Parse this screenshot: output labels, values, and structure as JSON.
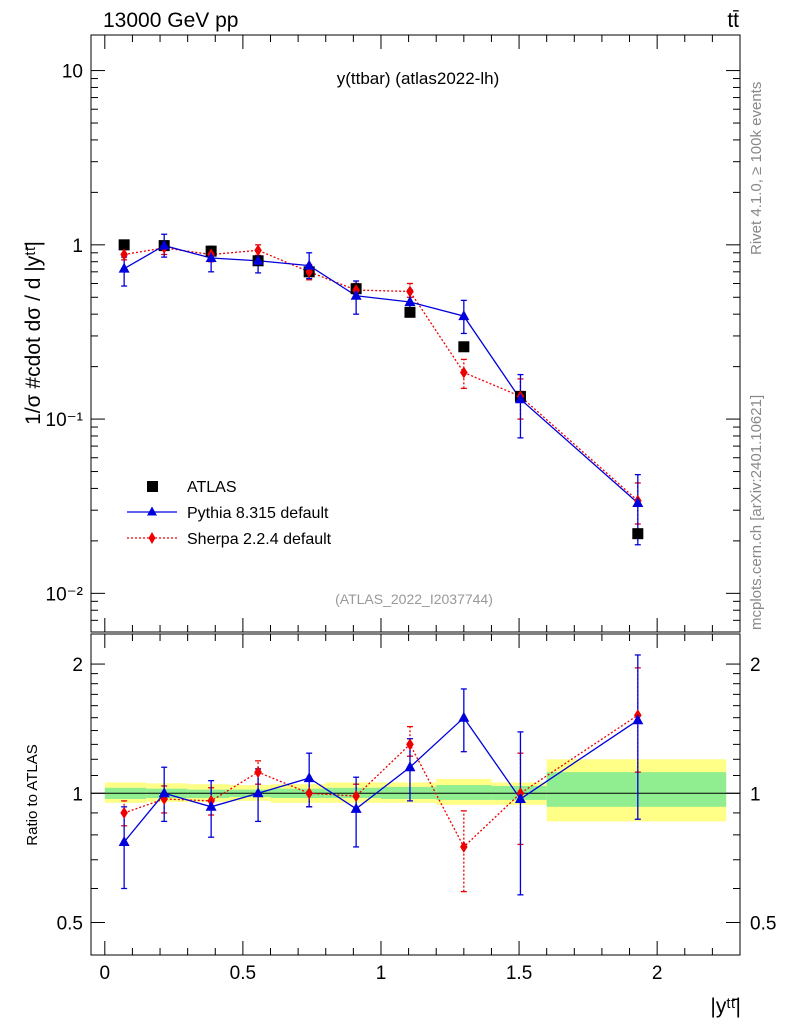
{
  "header": {
    "left": "13000 GeV pp",
    "right": "tt̄"
  },
  "side_labels": {
    "rivet": "Rivet 4.1.0, ≥ 100k events",
    "mcplots": "mcplots.cern.ch [arXiv:2401.10621]"
  },
  "colors": {
    "data": "#000000",
    "pythia": "#0000dd",
    "sherpa": "#ee0000",
    "band_inner": "#90ee90",
    "band_outer": "#ffff88"
  },
  "chart_data": [
    {
      "panel": "main",
      "type": "scatter",
      "title": "y(ttbar) (atlas2022-lh)",
      "watermark": "(ATLAS_2022_I2037744)",
      "ylabel": "1/σ #cdot dσ / d |yᵗᵗ̄|",
      "yscale": "log",
      "ylim": [
        0.006,
        16
      ],
      "xlim": [
        -0.05,
        2.3
      ],
      "ytick_labels": [
        "10",
        "1",
        "10⁻¹",
        "10⁻²"
      ],
      "legend": [
        "ATLAS",
        "Pythia 8.315 default",
        "Sherpa 2.2.4 default"
      ],
      "legend_position": "bottom-left",
      "series": [
        {
          "name": "ATLAS",
          "marker": "square",
          "x": [
            0.07,
            0.215,
            0.385,
            0.555,
            0.74,
            0.91,
            1.105,
            1.3,
            1.505,
            1.93
          ],
          "values": [
            1.0,
            0.99,
            0.92,
            0.81,
            0.7,
            0.56,
            0.41,
            0.26,
            0.135,
            0.022
          ]
        },
        {
          "name": "Pythia 8.315 default",
          "marker": "triangle",
          "x": [
            0.07,
            0.215,
            0.385,
            0.555,
            0.74,
            0.91,
            1.105,
            1.3,
            1.505,
            1.93
          ],
          "values": [
            0.73,
            0.99,
            0.84,
            0.81,
            0.76,
            0.51,
            0.47,
            0.39,
            0.13,
            0.033
          ],
          "err_low": [
            0.58,
            0.85,
            0.7,
            0.69,
            0.64,
            0.4,
            0.4,
            0.31,
            0.078,
            0.019
          ],
          "err_high": [
            0.85,
            1.15,
            0.98,
            0.93,
            0.9,
            0.62,
            0.55,
            0.48,
            0.18,
            0.048
          ]
        },
        {
          "name": "Sherpa 2.2.4 default",
          "marker": "diamond",
          "x": [
            0.07,
            0.215,
            0.385,
            0.555,
            0.74,
            0.91,
            1.105,
            1.3,
            1.505,
            1.93
          ],
          "values": [
            0.88,
            0.96,
            0.88,
            0.93,
            0.7,
            0.55,
            0.54,
            0.185,
            0.135,
            0.034
          ],
          "err_low": [
            0.82,
            0.88,
            0.8,
            0.87,
            0.63,
            0.5,
            0.5,
            0.15,
            0.1,
            0.025
          ],
          "err_high": [
            0.94,
            1.04,
            0.96,
            1.0,
            0.77,
            0.6,
            0.6,
            0.22,
            0.17,
            0.043
          ]
        }
      ]
    },
    {
      "panel": "ratio",
      "type": "scatter",
      "ylabel": "Ratio to ATLAS",
      "xlabel": "|yᵗᵗ̄|",
      "ylim": [
        0.42,
        2.35
      ],
      "xlim": [
        -0.05,
        2.3
      ],
      "xtick_labels": [
        "0",
        "0.5",
        "1",
        "1.5",
        "2"
      ],
      "ytick_labels": [
        "0.5",
        "1",
        "2"
      ],
      "band_bins": [
        {
          "xlo": 0.0,
          "xhi": 0.15,
          "inner": [
            0.97,
            1.03
          ],
          "outer": [
            0.95,
            1.06
          ]
        },
        {
          "xlo": 0.15,
          "xhi": 0.3,
          "inner": [
            0.975,
            1.025
          ],
          "outer": [
            0.955,
            1.055
          ]
        },
        {
          "xlo": 0.3,
          "xhi": 0.45,
          "inner": [
            0.975,
            1.02
          ],
          "outer": [
            0.955,
            1.05
          ]
        },
        {
          "xlo": 0.45,
          "xhi": 0.6,
          "inner": [
            0.98,
            1.02
          ],
          "outer": [
            0.96,
            1.045
          ]
        },
        {
          "xlo": 0.6,
          "xhi": 0.8,
          "inner": [
            0.975,
            1.025
          ],
          "outer": [
            0.95,
            1.05
          ]
        },
        {
          "xlo": 0.8,
          "xhi": 1.0,
          "inner": [
            0.975,
            1.03
          ],
          "outer": [
            0.95,
            1.06
          ]
        },
        {
          "xlo": 1.0,
          "xhi": 1.2,
          "inner": [
            0.97,
            1.035
          ],
          "outer": [
            0.95,
            1.06
          ]
        },
        {
          "xlo": 1.2,
          "xhi": 1.4,
          "inner": [
            0.965,
            1.045
          ],
          "outer": [
            0.94,
            1.08
          ]
        },
        {
          "xlo": 1.4,
          "xhi": 1.6,
          "inner": [
            0.965,
            1.04
          ],
          "outer": [
            0.94,
            1.06
          ]
        },
        {
          "xlo": 1.6,
          "xhi": 2.25,
          "inner": [
            0.93,
            1.12
          ],
          "outer": [
            0.86,
            1.2
          ]
        }
      ],
      "series": [
        {
          "name": "Pythia 8.315 default",
          "x": [
            0.07,
            0.215,
            0.385,
            0.555,
            0.74,
            0.91,
            1.105,
            1.3,
            1.505,
            1.93
          ],
          "values": [
            0.77,
            1.0,
            0.93,
            1.0,
            1.085,
            0.92,
            1.15,
            1.5,
            0.97,
            1.48
          ],
          "err_low": [
            0.6,
            0.86,
            0.79,
            0.86,
            0.93,
            0.75,
            0.96,
            1.25,
            0.58,
            0.87
          ],
          "err_high": [
            0.93,
            1.15,
            1.07,
            1.14,
            1.24,
            1.09,
            1.34,
            1.75,
            1.39,
            2.1
          ]
        },
        {
          "name": "Sherpa 2.2.4 default",
          "x": [
            0.07,
            0.215,
            0.385,
            0.555,
            0.74,
            0.91,
            1.105,
            1.3,
            1.505,
            1.93
          ],
          "values": [
            0.9,
            0.97,
            0.96,
            1.12,
            1.0,
            0.985,
            1.3,
            0.75,
            1.0,
            1.52
          ],
          "err_low": [
            0.84,
            0.9,
            0.89,
            1.05,
            0.93,
            0.92,
            1.22,
            0.59,
            0.76,
            1.12
          ],
          "err_high": [
            0.96,
            1.04,
            1.03,
            1.19,
            1.07,
            1.05,
            1.43,
            0.91,
            1.24,
            1.96
          ]
        }
      ]
    }
  ]
}
